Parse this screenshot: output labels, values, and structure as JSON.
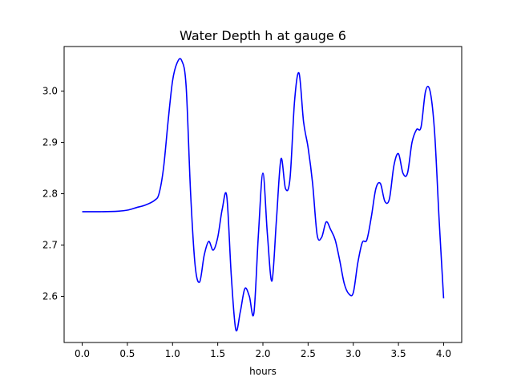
{
  "chart_data": {
    "type": "line",
    "title": "Water Depth h at gauge 6",
    "xlabel": "hours",
    "ylabel": "",
    "xlim": [
      -0.2,
      4.2
    ],
    "ylim": [
      2.51,
      3.087
    ],
    "x_ticks": [
      0.0,
      0.5,
      1.0,
      1.5,
      2.0,
      2.5,
      3.0,
      3.5,
      4.0
    ],
    "x_tick_labels": [
      "0.0",
      "0.5",
      "1.0",
      "1.5",
      "2.0",
      "2.5",
      "3.0",
      "3.5",
      "4.0"
    ],
    "y_ticks": [
      2.6,
      2.7,
      2.8,
      2.9,
      3.0
    ],
    "y_tick_labels": [
      "2.6",
      "2.7",
      "2.8",
      "2.9",
      "3.0"
    ],
    "grid": false,
    "line_color": "#0000ff",
    "series": [
      {
        "x": [
          0.0,
          0.2,
          0.4,
          0.5,
          0.6,
          0.7,
          0.8,
          0.85,
          0.9,
          0.95,
          1.0,
          1.05,
          1.1,
          1.15,
          1.2,
          1.25,
          1.3,
          1.35,
          1.4,
          1.45,
          1.5,
          1.55,
          1.6,
          1.65,
          1.7,
          1.75,
          1.8,
          1.85,
          1.9,
          1.95,
          2.0,
          2.05,
          2.1,
          2.15,
          2.2,
          2.25,
          2.3,
          2.35,
          2.4,
          2.45,
          2.5,
          2.55,
          2.6,
          2.65,
          2.7,
          2.75,
          2.8,
          2.85,
          2.9,
          2.95,
          3.0,
          3.05,
          3.1,
          3.15,
          3.2,
          3.25,
          3.3,
          3.35,
          3.4,
          3.45,
          3.5,
          3.55,
          3.6,
          3.65,
          3.7,
          3.75,
          3.8,
          3.85,
          3.9,
          3.95,
          4.0
        ],
        "y": [
          2.765,
          2.765,
          2.766,
          2.768,
          2.773,
          2.778,
          2.787,
          2.8,
          2.85,
          2.94,
          3.02,
          3.055,
          3.06,
          3.01,
          2.8,
          2.66,
          2.628,
          2.68,
          2.707,
          2.69,
          2.715,
          2.77,
          2.795,
          2.64,
          2.535,
          2.57,
          2.615,
          2.6,
          2.567,
          2.72,
          2.84,
          2.72,
          2.63,
          2.75,
          2.868,
          2.81,
          2.83,
          2.98,
          3.035,
          2.94,
          2.89,
          2.82,
          2.72,
          2.715,
          2.745,
          2.73,
          2.71,
          2.67,
          2.625,
          2.605,
          2.607,
          2.665,
          2.705,
          2.71,
          2.755,
          2.81,
          2.82,
          2.785,
          2.79,
          2.855,
          2.878,
          2.84,
          2.84,
          2.9,
          2.925,
          2.93,
          3.0,
          3.0,
          2.92,
          2.75,
          2.596
        ]
      }
    ]
  }
}
